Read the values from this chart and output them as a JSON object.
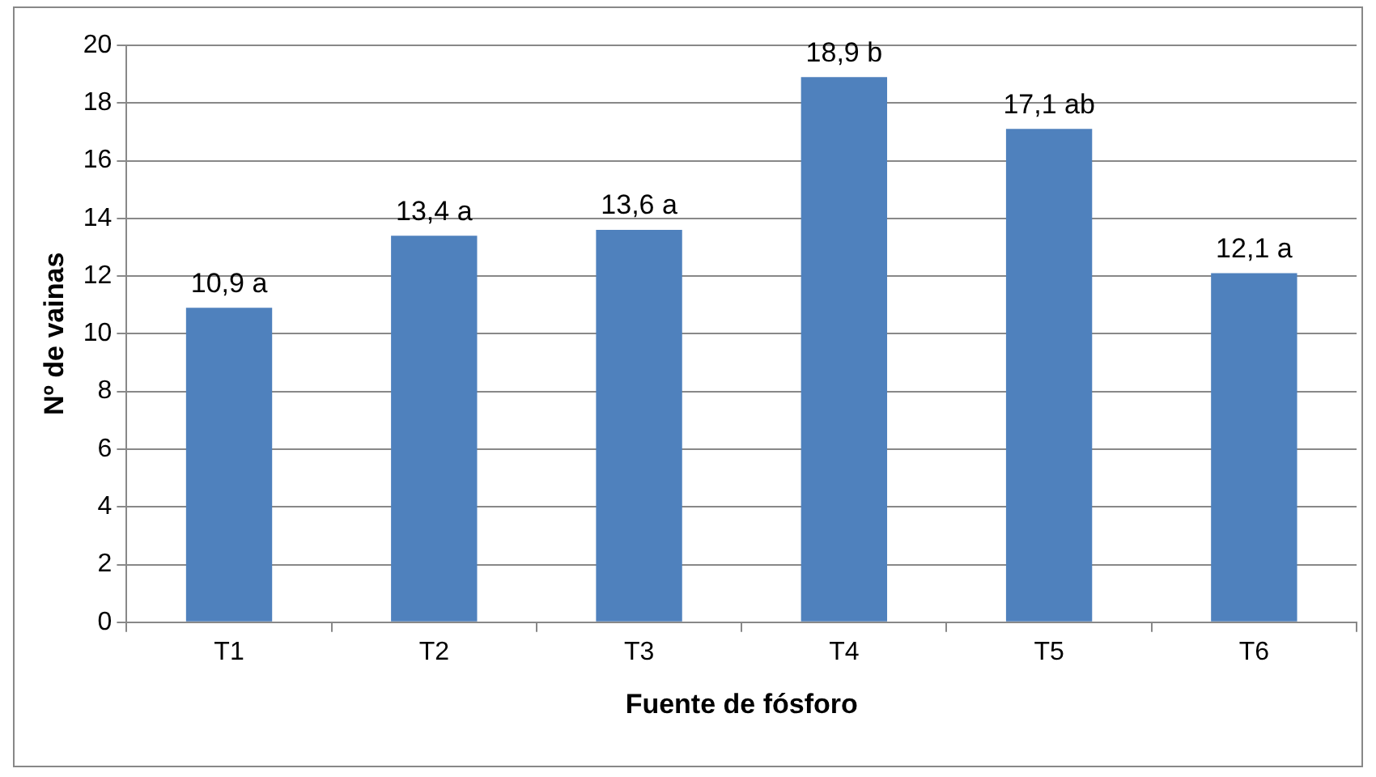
{
  "chart_data": {
    "type": "bar",
    "xlabel": "Fuente de fósforo",
    "ylabel": "Nº de vainas",
    "categories": [
      "T1",
      "T2",
      "T3",
      "T4",
      "T5",
      "T6"
    ],
    "values": [
      10.9,
      13.4,
      13.6,
      18.9,
      17.1,
      12.1
    ],
    "value_labels": [
      "10,9 a",
      "13,4 a",
      "13,6 a",
      "18,9 b",
      "17,1 ab",
      "12,1 a"
    ],
    "color": "#4f81bd",
    "ylim": [
      0,
      20
    ],
    "yticks": [
      0,
      2,
      4,
      6,
      8,
      10,
      12,
      14,
      16,
      18,
      20
    ],
    "grid": "y",
    "legend": false
  }
}
